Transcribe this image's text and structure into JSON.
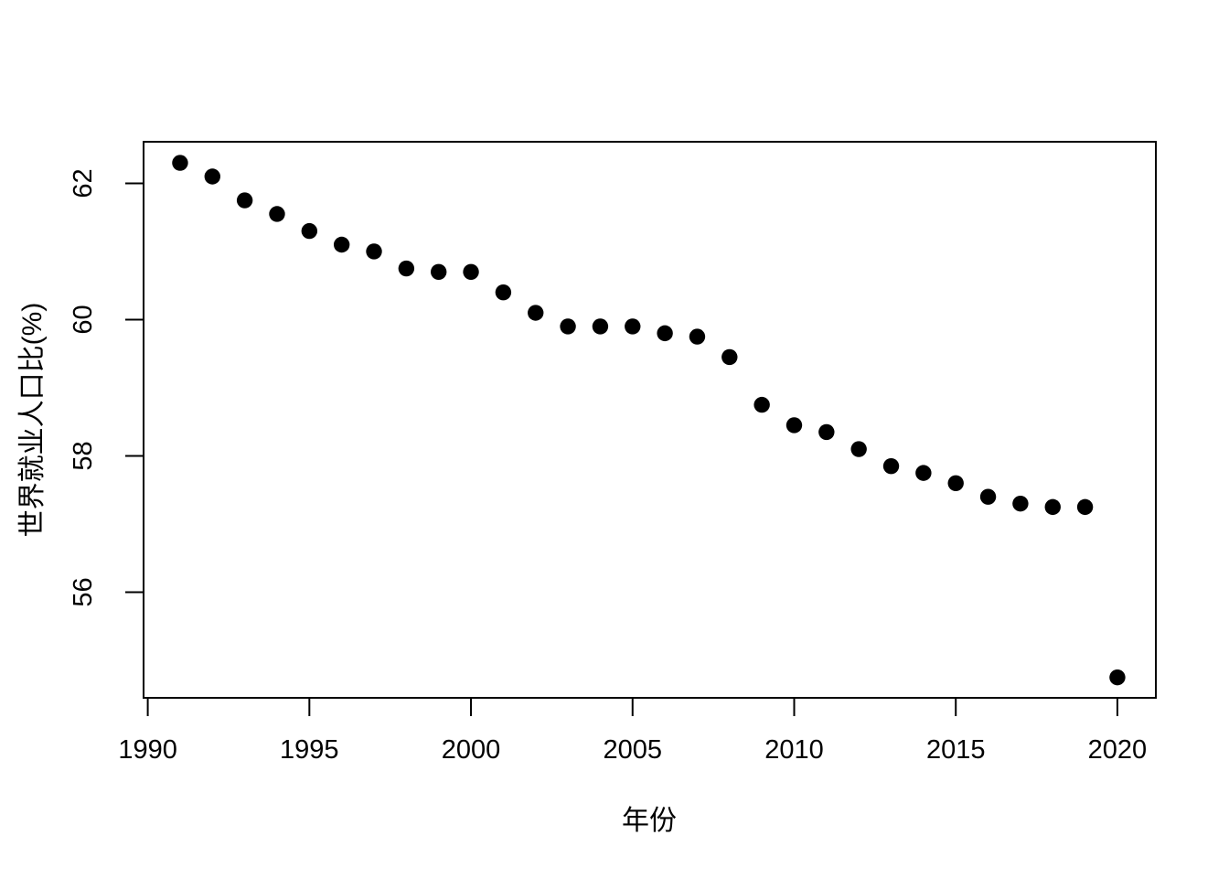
{
  "figure": {
    "background_color": "#ffffff",
    "foreground_color": "#000000"
  },
  "chart_data": {
    "type": "scatter",
    "title": "",
    "xlabel": "年份",
    "ylabel": "世界就业人口比(%)",
    "series": [
      {
        "name": "世界就业人口比",
        "x": [
          1991,
          1992,
          1993,
          1994,
          1995,
          1996,
          1997,
          1998,
          1999,
          2000,
          2001,
          2002,
          2003,
          2004,
          2005,
          2006,
          2007,
          2008,
          2009,
          2010,
          2011,
          2012,
          2013,
          2014,
          2015,
          2016,
          2017,
          2018,
          2019,
          2020
        ],
        "y": [
          62.3,
          62.1,
          61.75,
          61.55,
          61.3,
          61.1,
          61.0,
          60.75,
          60.7,
          60.7,
          60.4,
          60.1,
          59.9,
          59.9,
          59.9,
          59.8,
          59.75,
          59.45,
          58.75,
          58.45,
          58.35,
          58.1,
          57.85,
          57.75,
          57.6,
          57.4,
          57.3,
          57.25,
          57.25,
          54.75
        ]
      }
    ],
    "xticks": [
      1990,
      1995,
      2000,
      2005,
      2010,
      2015,
      2020
    ],
    "yticks": [
      56,
      58,
      60,
      62
    ],
    "xlim": [
      1989.87,
      2021.19
    ],
    "ylim": [
      54.45,
      62.61
    ],
    "grid": false,
    "legend": "none",
    "point_color": "#000000",
    "point_radius": 8.7,
    "box_color": "#000000"
  }
}
